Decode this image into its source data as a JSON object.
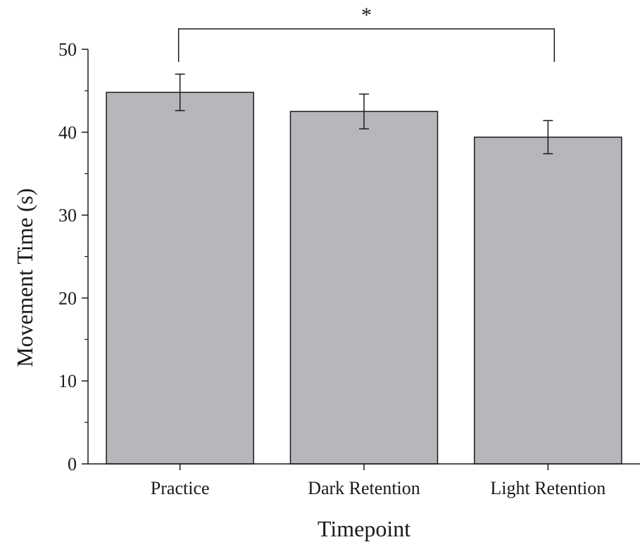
{
  "chart_data": {
    "type": "bar",
    "categories": [
      "Practice",
      "Dark Retention",
      "Light Retention"
    ],
    "values": [
      44.8,
      42.5,
      39.4
    ],
    "errors": [
      2.2,
      2.1,
      2.0
    ],
    "xlabel": "Timepoint",
    "ylabel": "Movement Time (s)",
    "ylim": [
      0,
      50
    ],
    "yticks": [
      "0",
      "10",
      "20",
      "30",
      "40",
      "50"
    ],
    "minor_y_step": 5,
    "grid": false,
    "bar_color": "#b6b7bb",
    "significance": {
      "from": "Practice",
      "to": "Light Retention",
      "label": "*"
    }
  }
}
